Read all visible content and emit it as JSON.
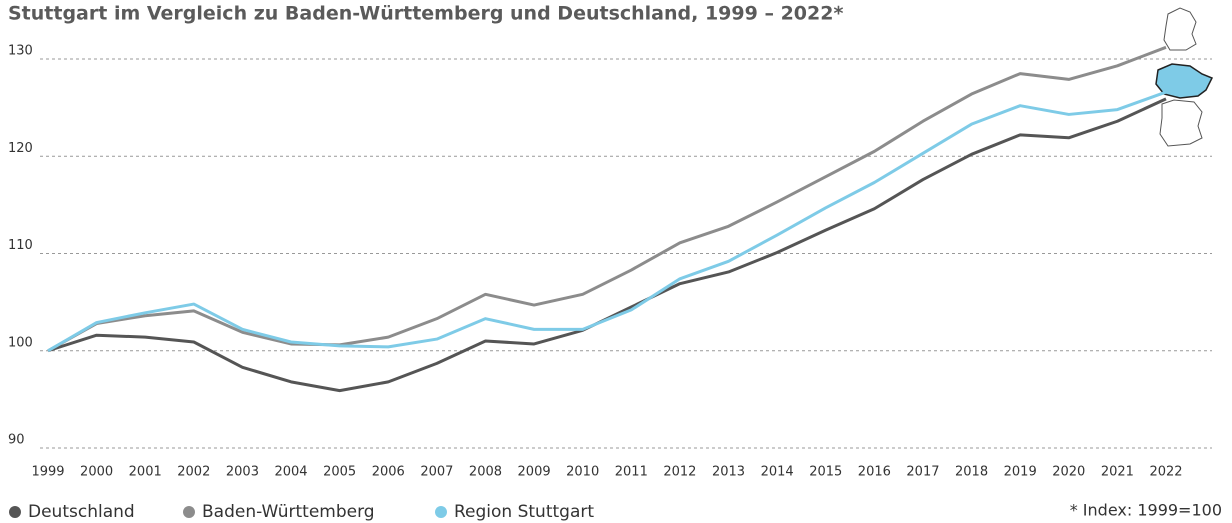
{
  "chart_data": {
    "type": "line",
    "title": "Stuttgart im Vergleich zu Baden-Württemberg und Deutschland, 1999 – 2022*",
    "annotation": "* Index: 1999=100",
    "x": [
      1999,
      2000,
      2001,
      2002,
      2003,
      2004,
      2005,
      2006,
      2007,
      2008,
      2009,
      2010,
      2011,
      2012,
      2013,
      2014,
      2015,
      2016,
      2017,
      2018,
      2019,
      2020,
      2021,
      2022
    ],
    "xlim": [
      1999,
      2022
    ],
    "ylim": [
      90,
      130
    ],
    "yticks": [
      90,
      100,
      110,
      120,
      130
    ],
    "grid": true,
    "legend": "bottom-left",
    "series": [
      {
        "name": "Deutschland",
        "color": "#555555",
        "values": [
          100,
          101.6,
          101.4,
          100.9,
          98.3,
          96.8,
          95.9,
          96.8,
          98.7,
          101.0,
          100.7,
          102.1,
          104.5,
          106.9,
          108.1,
          110.1,
          112.4,
          114.6,
          117.6,
          120.2,
          122.2,
          121.9,
          123.6,
          125.9
        ]
      },
      {
        "name": "Baden-Württemberg",
        "color": "#8c8c8c",
        "values": [
          100,
          102.8,
          103.6,
          104.1,
          101.9,
          100.7,
          100.6,
          101.4,
          103.3,
          105.8,
          104.7,
          105.8,
          108.3,
          111.1,
          112.8,
          115.3,
          117.9,
          120.5,
          123.6,
          126.4,
          128.5,
          127.9,
          129.3,
          131.2
        ]
      },
      {
        "name": "Region Stuttgart",
        "color": "#7ecbe7",
        "values": [
          100,
          102.9,
          103.9,
          104.8,
          102.2,
          100.9,
          100.5,
          100.4,
          101.2,
          103.3,
          102.2,
          102.2,
          104.2,
          107.4,
          109.2,
          111.9,
          114.7,
          117.3,
          120.3,
          123.3,
          125.2,
          124.3,
          124.8,
          126.6
        ]
      }
    ]
  }
}
